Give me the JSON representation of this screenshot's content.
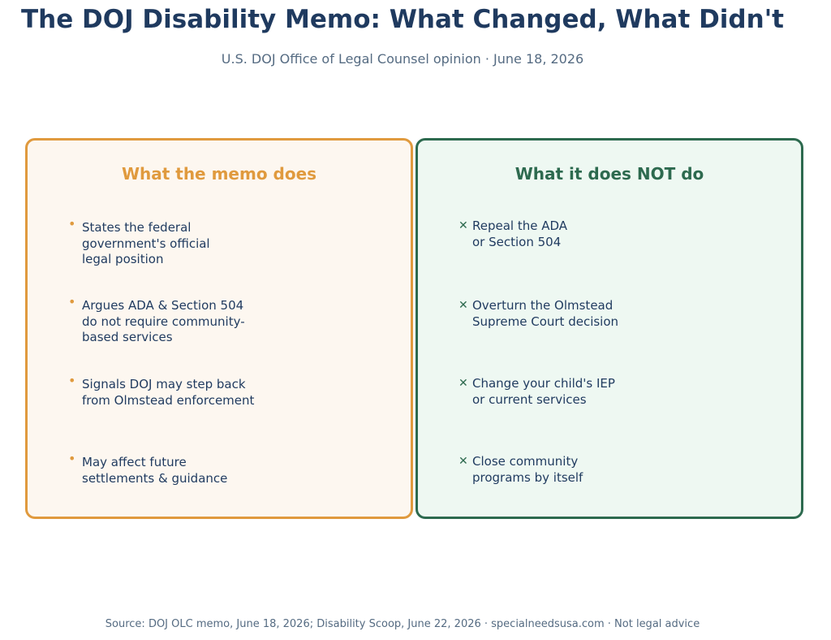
{
  "title": "The DOJ Disability Memo: What Changed, What Didn't",
  "subtitle": "U.S. DOJ Office of Legal Counsel opinion · June 18, 2026",
  "colors": {
    "navy": "#1f3a5f",
    "orange": "#e09a3e",
    "green": "#2d6a4f",
    "gray": "#556b82"
  },
  "does": {
    "heading": "What the memo does",
    "marker_icon": "bullet-dot",
    "marker": "•",
    "items": [
      "States the federal\ngovernment's official\nlegal position",
      "Argues ADA & Section 504\ndo not require community-\nbased services",
      "Signals DOJ may step back\nfrom Olmstead enforcement",
      "May affect future\nsettlements & guidance"
    ]
  },
  "does_not": {
    "heading": "What it does NOT do",
    "marker_icon": "x-mark",
    "marker": "✕",
    "items": [
      "Repeal the ADA\nor Section 504",
      "Overturn the Olmstead\nSupreme Court decision",
      "Change your child's IEP\nor current services",
      "Close community\nprograms by itself"
    ]
  },
  "footer": "Source: DOJ OLC memo, June 18, 2026; Disability Scoop, June 22, 2026  ·  specialneedsusa.com  ·  Not legal advice"
}
